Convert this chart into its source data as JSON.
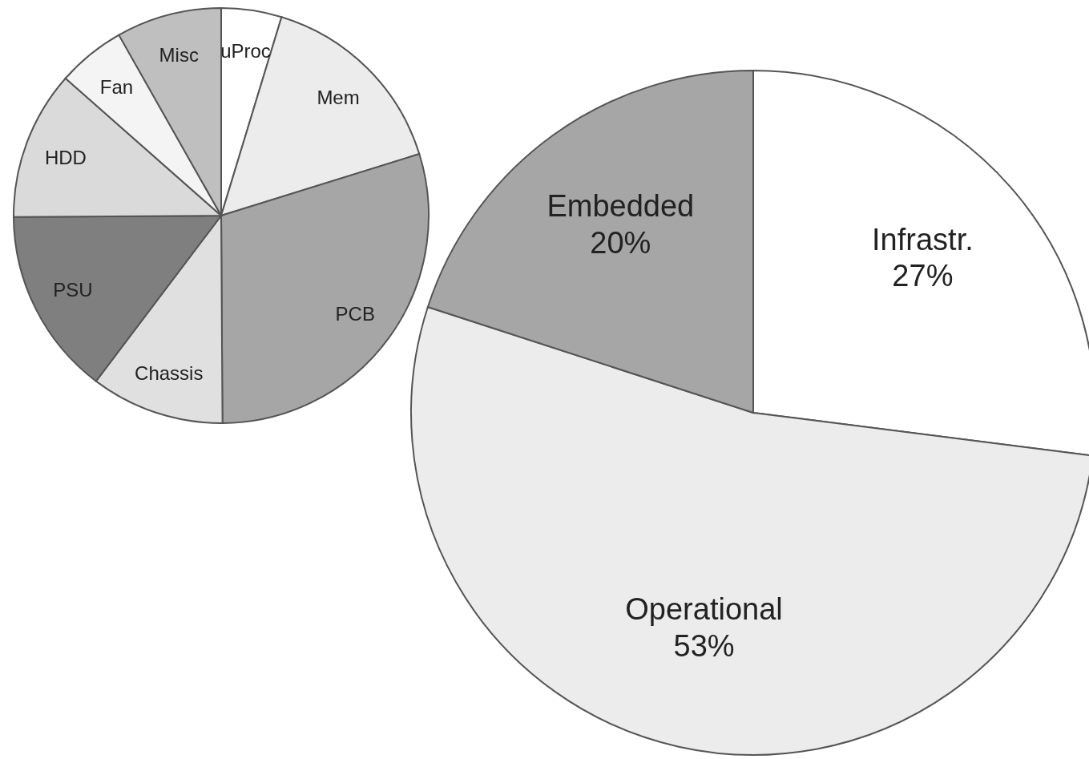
{
  "chart_data": [
    {
      "type": "pie",
      "categories": [
        "uProc",
        "Mem",
        "PCB",
        "Chassis",
        "PSU",
        "HDD",
        "Fan",
        "Misc"
      ],
      "values": [
        4.7,
        15.5,
        29.7,
        10.4,
        14.6,
        11.6,
        5.3,
        8.2
      ],
      "colors": [
        "#ffffff",
        "#ececec",
        "#a6a6a6",
        "#e0e0e0",
        "#7f7f7f",
        "#dadada",
        "#f4f4f4",
        "#bfbfbf"
      ]
    },
    {
      "type": "pie",
      "categories": [
        "Infrastr.",
        "Operational",
        "Embedded"
      ],
      "values": [
        27,
        53,
        20
      ],
      "colors": [
        "#ffffff",
        "#ececec",
        "#a6a6a6"
      ],
      "value_labels": [
        "27%",
        "53%",
        "20%"
      ]
    }
  ]
}
